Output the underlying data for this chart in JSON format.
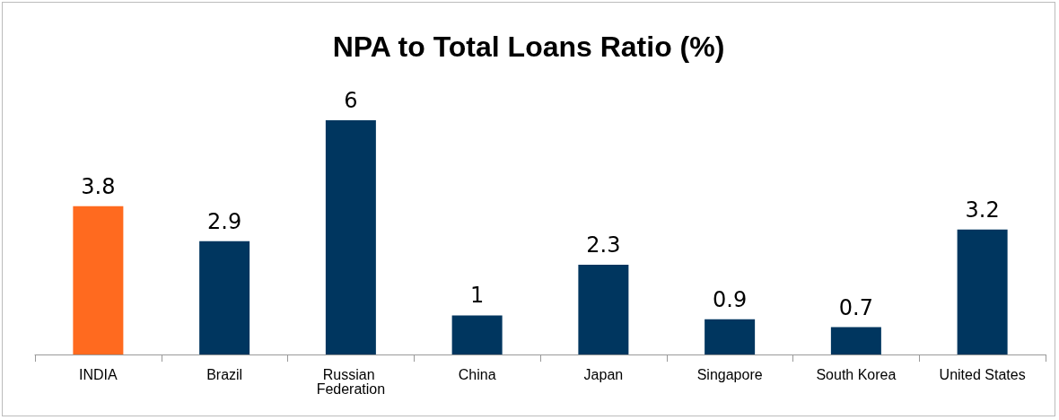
{
  "chart_data": {
    "type": "bar",
    "title": "NPA to Total Loans Ratio (%)",
    "categories": [
      "INDIA",
      "Brazil",
      "Russian Federation",
      "China",
      "Japan",
      "Singapore",
      "South Korea",
      "United States"
    ],
    "values": [
      3.8,
      2.9,
      6,
      1,
      2.3,
      0.9,
      0.7,
      3.2
    ],
    "colors": [
      "#ff6a1f",
      "#00365f",
      "#00365f",
      "#00365f",
      "#00365f",
      "#00365f",
      "#00365f",
      "#00365f"
    ],
    "data_labels": true
  }
}
